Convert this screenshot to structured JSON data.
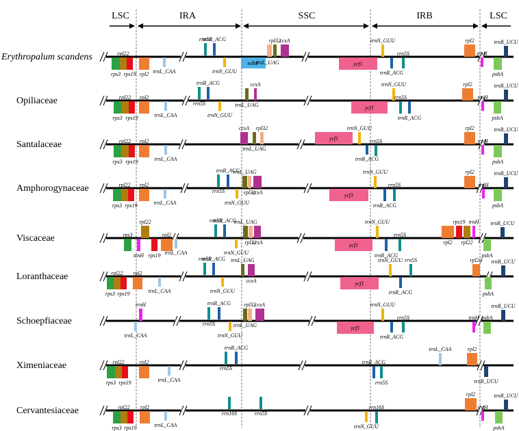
{
  "regions": [
    "LSC",
    "IRA",
    "SSC",
    "IRB",
    "LSC"
  ],
  "colors": {
    "rps3": "#2ca045",
    "rpl22": "#b07d0f",
    "rps19": "#e8101a",
    "rpl2": "#ee7d32",
    "trnL_CAA": "#9ec5e8",
    "rrn5S": "#0f8f8c",
    "trnR_ACG": "#1f5fa8",
    "trnN_GUU": "#f2b40c",
    "rpl32": "#f2b08a",
    "rpl32b": "#6b6b1a",
    "ccsA": "#b0318f",
    "ycf1": "#f0628e",
    "ndhF": "#4fb3e8",
    "trnH": "#ee22ee",
    "psbA": "#7cc95a",
    "trnR_UCU": "#1e4470",
    "rrn16S": "#0f8f8c",
    "backbone": "#000000"
  },
  "species": [
    {
      "name": "Erythropalum scandens",
      "italic": true,
      "genes": [
        {
          "g": "rps3",
          "label": "rps3",
          "pos": "below"
        },
        {
          "g": "rpl22",
          "label": "rpl22",
          "pos": "above"
        },
        {
          "g": "rps19",
          "label": "rps19",
          "pos": "below"
        },
        {
          "g": "rpl2",
          "label": "rpl2",
          "pos": "below"
        },
        {
          "g": "trnL_CAA",
          "label": "trnL_CAA",
          "pos": "below"
        },
        {
          "g": "rrn5S",
          "label": "rrn5S",
          "pos": "above"
        },
        {
          "g": "trnR_ACG",
          "label": "trnR_ACG",
          "pos": "above"
        },
        {
          "g": "trnN_GUU",
          "label": "trnN_GUU",
          "pos": "below"
        },
        {
          "g": "ndhF",
          "label": "ndhF",
          "pos": "inside"
        },
        {
          "g": "trnL_UAG",
          "label": "trnL_UAG",
          "pos": "below"
        },
        {
          "g": "rpl32",
          "label": "",
          "pos": "none"
        },
        {
          "g": "rpl32b",
          "label": "rpl32",
          "pos": "above"
        },
        {
          "g": "ccsA",
          "label": "ccsA",
          "pos": "above"
        },
        {
          "g": "ycf1",
          "label": "ycf1",
          "pos": "inside"
        },
        {
          "g": "trnN_GUU2",
          "label": "trnN_GUU",
          "pos": "above"
        },
        {
          "g": "trnR_ACG2",
          "label": "trnR_ACG",
          "pos": "below"
        },
        {
          "g": "rrn5S2",
          "label": "rrn5S",
          "pos": "above"
        },
        {
          "g": "rpl2b",
          "label": "rpl2",
          "pos": "above"
        },
        {
          "g": "trnH",
          "label": "trnH",
          "pos": "above"
        },
        {
          "g": "psbA",
          "label": "psbA",
          "pos": "below"
        },
        {
          "g": "trnR_UCU",
          "label": "trnR_UCU",
          "pos": "above"
        }
      ]
    },
    {
      "name": "Opiliaceae",
      "italic": false,
      "genes": [
        {
          "g": "rps3",
          "label": "rps3",
          "pos": "below"
        },
        {
          "g": "rpl22",
          "label": "rpl22",
          "pos": "above"
        },
        {
          "g": "rps19",
          "label": "rps19",
          "pos": "below"
        },
        {
          "g": "rpl2",
          "label": "rpl2",
          "pos": "above"
        },
        {
          "g": "trnL_CAA",
          "label": "trnL_CAA",
          "pos": "below"
        },
        {
          "g": "rrn5S",
          "label": "rrn5S",
          "pos": "below"
        },
        {
          "g": "trnR_ACG",
          "label": "trnR_ACG",
          "pos": "above"
        },
        {
          "g": "trnN_GUU",
          "label": "trnN_GUU",
          "pos": "below"
        },
        {
          "g": "trnL_UAG",
          "label": "trnL_UAG",
          "pos": "below"
        },
        {
          "g": "ccsA",
          "label": "ccsA",
          "pos": "above"
        },
        {
          "g": "ycf1",
          "label": "ycf1",
          "pos": "inside"
        },
        {
          "g": "trnN_GUU2",
          "label": "trnN_GUU",
          "pos": "above"
        },
        {
          "g": "rrn5S2",
          "label": "rrn5S",
          "pos": "above"
        },
        {
          "g": "trnR_ACG2",
          "label": "trnR_ACG",
          "pos": "below"
        },
        {
          "g": "rpl2b",
          "label": "rpl2",
          "pos": "above"
        },
        {
          "g": "trnH",
          "label": "trnH",
          "pos": "above"
        },
        {
          "g": "psbA",
          "label": "psbA",
          "pos": "below"
        },
        {
          "g": "trnR_UCU",
          "label": "trnR_UCU",
          "pos": "above"
        }
      ]
    },
    {
      "name": "Santalaceae",
      "italic": false,
      "genes": [
        {
          "g": "rps3",
          "label": "rps3",
          "pos": "below"
        },
        {
          "g": "rpl22",
          "label": "rpl22",
          "pos": "above"
        },
        {
          "g": "rps19",
          "label": "rps19",
          "pos": "below"
        },
        {
          "g": "rpl2",
          "label": "rpl2",
          "pos": "above"
        },
        {
          "g": "trnL_CAA",
          "label": "trnL_CAA",
          "pos": "below"
        },
        {
          "g": "ccsA",
          "label": "ccsA",
          "pos": "above"
        },
        {
          "g": "trnL_UAG",
          "label": "trnL_UAG",
          "pos": "below"
        },
        {
          "g": "rpl32",
          "label": "rpl32",
          "pos": "above"
        },
        {
          "g": "ycf1",
          "label": "ycf1",
          "pos": "inside"
        },
        {
          "g": "trnN_GUU",
          "label": "trnN_GUU",
          "pos": "above"
        },
        {
          "g": "trnR_ACG",
          "label": "trnR_ACG",
          "pos": "below"
        },
        {
          "g": "rrn5S",
          "label": "rrn5S",
          "pos": "above"
        },
        {
          "g": "rpl2b",
          "label": "rpl2",
          "pos": "above"
        },
        {
          "g": "trnH",
          "label": "trnH",
          "pos": "above"
        },
        {
          "g": "psbA",
          "label": "psbA",
          "pos": "below"
        },
        {
          "g": "trnR_UCU",
          "label": "trnR_UCU",
          "pos": "above"
        }
      ]
    },
    {
      "name": "Amphorogynaceae",
      "italic": false,
      "genes": [
        {
          "g": "rps3",
          "label": "rps3",
          "pos": "below"
        },
        {
          "g": "rpl22",
          "label": "rpl22",
          "pos": "above"
        },
        {
          "g": "rps19",
          "label": "rps19",
          "pos": "below"
        },
        {
          "g": "rpl2",
          "label": "rpl2",
          "pos": "above"
        },
        {
          "g": "trnL_CAA",
          "label": "trnL_CAA",
          "pos": "below"
        },
        {
          "g": "rrn5S",
          "label": "rrn5S",
          "pos": "below"
        },
        {
          "g": "trnR_ACG",
          "label": "trnR_ACG",
          "pos": "above"
        },
        {
          "g": "trnN_GUU",
          "label": "trnN_GUU",
          "pos": "below"
        },
        {
          "g": "trnL_UAG",
          "label": "trnL_UAG",
          "pos": "above"
        },
        {
          "g": "rpl32",
          "label": "rpl32",
          "pos": "below"
        },
        {
          "g": "ccsA",
          "label": "ccsA",
          "pos": "below"
        },
        {
          "g": "ycf1",
          "label": "ycf1",
          "pos": "inside"
        },
        {
          "g": "trnN_GUU2",
          "label": "trnN_GUU",
          "pos": "above"
        },
        {
          "g": "trnR_ACG2",
          "label": "trnR_ACG",
          "pos": "below"
        },
        {
          "g": "rrn5S2",
          "label": "rrn5S",
          "pos": "above"
        },
        {
          "g": "rpl2b",
          "label": "rpl2",
          "pos": "above"
        },
        {
          "g": "trnH",
          "label": "trnH",
          "pos": "above"
        },
        {
          "g": "psbA",
          "label": "psbA",
          "pos": "below"
        },
        {
          "g": "trnR_UCU",
          "label": "trnR_UCU",
          "pos": "above"
        }
      ]
    },
    {
      "name": "Viscaceae",
      "italic": false,
      "genes": [
        {
          "g": "rps3",
          "label": "rps3",
          "pos": "above"
        },
        {
          "g": "trnH",
          "label": "trnH",
          "pos": "below"
        },
        {
          "g": "rpl22",
          "label": "rpl22",
          "pos": "above"
        },
        {
          "g": "rps19",
          "label": "rps19",
          "pos": "below"
        },
        {
          "g": "rpl2",
          "label": "rpl2",
          "pos": "above"
        },
        {
          "g": "trnL_CAA",
          "label": "trnL_CAA",
          "pos": "below"
        },
        {
          "g": "rrn5S",
          "label": "rrn5S",
          "pos": "above"
        },
        {
          "g": "trnR_ACG",
          "label": "trnR_ACG",
          "pos": "above"
        },
        {
          "g": "trnN_GUU",
          "label": "trnN_GUU",
          "pos": "below"
        },
        {
          "g": "trnL_UAG",
          "label": "trnL_UAG",
          "pos": "above"
        },
        {
          "g": "rpl32",
          "label": "rpl32",
          "pos": "below"
        },
        {
          "g": "ccsA",
          "label": "ccsA",
          "pos": "below"
        },
        {
          "g": "ycf1",
          "label": "ycf1",
          "pos": "inside"
        },
        {
          "g": "trnN_GUU2",
          "label": "trnN_GUU",
          "pos": "above"
        },
        {
          "g": "trnR_ACG2",
          "label": "trnR_ACG",
          "pos": "below"
        },
        {
          "g": "rrn5S2",
          "label": "rrn5S",
          "pos": "above"
        },
        {
          "g": "rpl2b",
          "label": "rpl2",
          "pos": "below"
        },
        {
          "g": "rps19b",
          "label": "rps19",
          "pos": "above"
        },
        {
          "g": "rpl22b",
          "label": "rpl22",
          "pos": "below"
        },
        {
          "g": "trnH2",
          "label": "trnH",
          "pos": "above"
        },
        {
          "g": "psbA",
          "label": "psbA",
          "pos": "below"
        },
        {
          "g": "trnR_UCU",
          "label": "trnR_UCU",
          "pos": "above"
        }
      ]
    },
    {
      "name": "Loranthaceae",
      "italic": false,
      "genes": [
        {
          "g": "rps3",
          "label": "rps3",
          "pos": "below"
        },
        {
          "g": "rpl22",
          "label": "rpl22",
          "pos": "above"
        },
        {
          "g": "rps19",
          "label": "rps19",
          "pos": "below"
        },
        {
          "g": "rpl2",
          "label": "rpl2",
          "pos": "above"
        },
        {
          "g": "trnL_CAA",
          "label": "trnL_CAA",
          "pos": "below"
        },
        {
          "g": "rrn5S",
          "label": "rrn5S",
          "pos": "above"
        },
        {
          "g": "trnR_ACG",
          "label": "trnR_ACG",
          "pos": "above"
        },
        {
          "g": "trnN_GUU",
          "label": "trnN_GUU",
          "pos": "below"
        },
        {
          "g": "trnL_UAG",
          "label": "trnL_UAG",
          "pos": "above"
        },
        {
          "g": "ccsA",
          "label": "ccsA",
          "pos": "below"
        },
        {
          "g": "ycf1",
          "label": "ycf1",
          "pos": "inside"
        },
        {
          "g": "trnN_GUU2",
          "label": "trnN_GUU",
          "pos": "above"
        },
        {
          "g": "trnR_ACG2",
          "label": "trnR_ACG",
          "pos": "below"
        },
        {
          "g": "rrn5S2",
          "label": "rrn5S",
          "pos": "above"
        },
        {
          "g": "rpl2b",
          "label": "rpl2ψ",
          "pos": "above"
        },
        {
          "g": "psbA",
          "label": "psbA",
          "pos": "below"
        },
        {
          "g": "trnR_UCU",
          "label": "trnR_UCU",
          "pos": "above"
        }
      ]
    },
    {
      "name": "Schoepfiaceae",
      "italic": false,
      "genes": [
        {
          "g": "trnH",
          "label": "trnH",
          "pos": "above"
        },
        {
          "g": "trnL_CAA",
          "label": "trnL_CAA",
          "pos": "below"
        },
        {
          "g": "rrn5S",
          "label": "rrn5S",
          "pos": "below"
        },
        {
          "g": "trnR_ACG",
          "label": "trnR_ACG",
          "pos": "above"
        },
        {
          "g": "trnN_GUU",
          "label": "trnN_GUU",
          "pos": "below"
        },
        {
          "g": "trnL_UAG",
          "label": "trnL_UAG",
          "pos": "below"
        },
        {
          "g": "rpl32",
          "label": "rpl32",
          "pos": "above"
        },
        {
          "g": "ccsA",
          "label": "ccsA",
          "pos": "above"
        },
        {
          "g": "ycf1",
          "label": "ycf1",
          "pos": "inside"
        },
        {
          "g": "trnN_GUU2",
          "label": "trnN_GUU",
          "pos": "above"
        },
        {
          "g": "trnR_ACG2",
          "label": "trnR_ACG",
          "pos": "below"
        },
        {
          "g": "rrn5S2",
          "label": "rrn5S",
          "pos": "above"
        },
        {
          "g": "trnH2",
          "label": "trnH",
          "pos": "above"
        },
        {
          "g": "psbA",
          "label": "psbA",
          "pos": "above"
        },
        {
          "g": "trnR_UCU",
          "label": "trnR_UCU",
          "pos": "above"
        }
      ]
    },
    {
      "name": "Ximeniaceae",
      "italic": false,
      "genes": [
        {
          "g": "rps3",
          "label": "rps3",
          "pos": "below"
        },
        {
          "g": "rpl22",
          "label": "rpl22",
          "pos": "above"
        },
        {
          "g": "rps19",
          "label": "rps19",
          "pos": "below"
        },
        {
          "g": "rpl2",
          "label": "rpl2",
          "pos": "above"
        },
        {
          "g": "trnL_CAA",
          "label": "trnL_CAA",
          "pos": "below"
        },
        {
          "g": "rrn5S",
          "label": "rrn5S",
          "pos": "below"
        },
        {
          "g": "trnR_ACG",
          "label": "trnR_ACG",
          "pos": "above"
        },
        {
          "g": "trnR_ACG2",
          "label": "trnR_ACG",
          "pos": "above"
        },
        {
          "g": "rrn5S2",
          "label": "rrn5S",
          "pos": "below"
        },
        {
          "g": "trnL_CAA2",
          "label": "trnL_CAA",
          "pos": "above"
        },
        {
          "g": "rpl2b",
          "label": "rpl2",
          "pos": "above"
        },
        {
          "g": "trnR_UCU",
          "label": "trnR_UCU",
          "pos": "below"
        }
      ]
    },
    {
      "name": "Cervantesiaceae",
      "italic": false,
      "genes": [
        {
          "g": "rps3",
          "label": "rps3",
          "pos": "below"
        },
        {
          "g": "rpl22",
          "label": "rpl22",
          "pos": "above"
        },
        {
          "g": "rps19",
          "label": "rps19",
          "pos": "below"
        },
        {
          "g": "rpl2",
          "label": "rpl2",
          "pos": "above"
        },
        {
          "g": "trnL_CAA",
          "label": "trnL_CAA",
          "pos": "below"
        },
        {
          "g": "rrn16S",
          "label": "rrn16S",
          "pos": "below"
        },
        {
          "g": "rrn5S",
          "label": "rrn5S",
          "pos": "below"
        },
        {
          "g": "trnN_GUU",
          "label": "trnN_GUU",
          "pos": "below"
        },
        {
          "g": "rrn16S2",
          "label": "rrn16S",
          "pos": "above"
        },
        {
          "g": "rpl2b",
          "label": "rpl2",
          "pos": "above"
        },
        {
          "g": "trnH",
          "label": "trnH",
          "pos": "above"
        },
        {
          "g": "psbA",
          "label": "psbA",
          "pos": "below"
        },
        {
          "g": "trnR_UCU",
          "label": "trnR_UCU",
          "pos": "above"
        }
      ]
    }
  ]
}
